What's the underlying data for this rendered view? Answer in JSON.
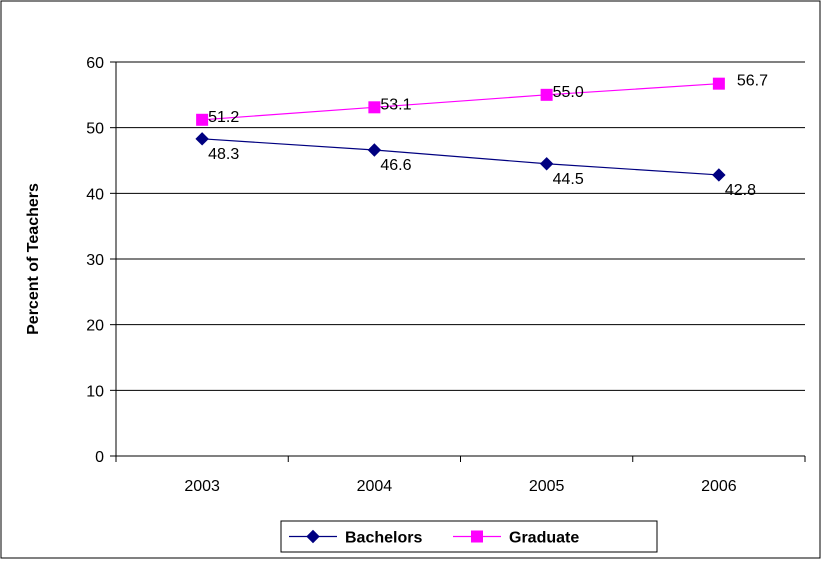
{
  "chart_data": {
    "type": "line",
    "title": "",
    "xlabel": "",
    "ylabel": "Percent of Teachers",
    "categories": [
      "2003",
      "2004",
      "2005",
      "2006"
    ],
    "ylim": [
      0,
      60
    ],
    "yticks": [
      0,
      10,
      20,
      30,
      40,
      50,
      60
    ],
    "grid": true,
    "legend_position": "bottom",
    "series": [
      {
        "name": "Bachelors",
        "values": [
          48.3,
          46.6,
          44.5,
          42.8
        ],
        "labels": [
          "48.3",
          "46.6",
          "44.5",
          "42.8"
        ],
        "color": "#000080",
        "marker": "diamond"
      },
      {
        "name": "Graduate",
        "values": [
          51.2,
          53.1,
          55.0,
          56.7
        ],
        "labels": [
          "51.2",
          "53.1",
          "55.0",
          "56.7"
        ],
        "color": "#FF00FF",
        "marker": "square"
      }
    ]
  }
}
